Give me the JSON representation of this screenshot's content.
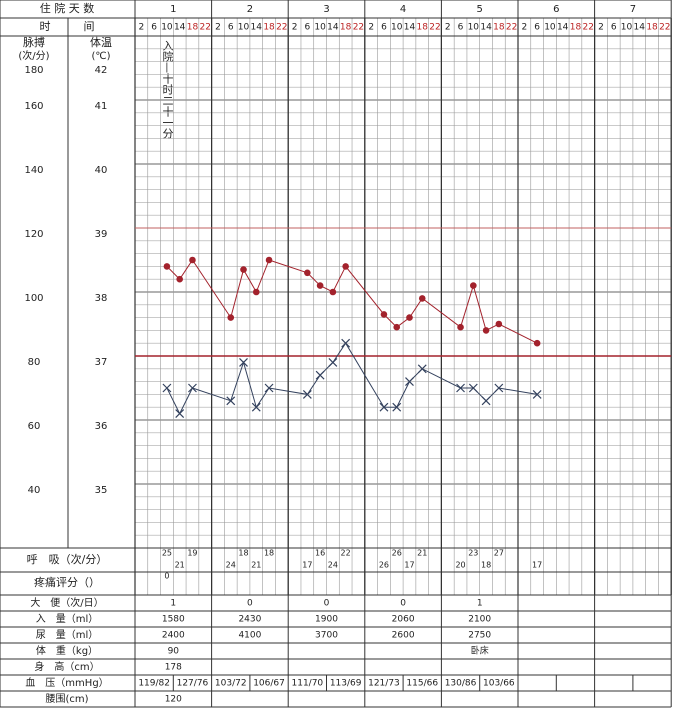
{
  "header": {
    "days_label": "住 院 天 数",
    "time_label": "时　　　间",
    "pulse_label": "脉搏",
    "temp_label": "体温",
    "pulse_unit": "(次/分)",
    "temp_unit": "(℃)"
  },
  "days": [
    1,
    2,
    3,
    4,
    5,
    6,
    7
  ],
  "hours": [
    2,
    6,
    10,
    14,
    18,
    22
  ],
  "chart_data": {
    "type": "line",
    "annotation": "入院—十时二十一分",
    "ylim": [
      20,
      180
    ],
    "yticks": [
      40,
      60,
      80,
      100,
      120,
      140,
      160,
      180
    ],
    "y2lim": [
      34,
      42
    ],
    "y2ticks": [
      35,
      36,
      37,
      38,
      39,
      40,
      41,
      42
    ],
    "series": [
      {
        "name": "脉搏",
        "color": "#a3222c",
        "values": [
          null,
          null,
          108,
          104,
          110,
          null,
          null,
          92,
          107,
          100,
          110,
          null,
          null,
          106,
          102,
          100,
          108,
          null,
          null,
          93,
          89,
          92,
          98,
          null,
          null,
          89,
          102,
          88,
          90,
          null,
          null,
          84,
          null,
          null,
          null,
          null,
          null,
          null,
          null,
          null,
          null,
          null
        ]
      },
      {
        "name": "体温",
        "color": "#34425e",
        "axis": "y2",
        "values": [
          null,
          null,
          36.5,
          36.1,
          36.5,
          null,
          null,
          36.3,
          36.9,
          36.2,
          36.5,
          null,
          null,
          36.4,
          36.7,
          36.9,
          37.2,
          null,
          null,
          36.2,
          36.2,
          36.6,
          36.8,
          null,
          null,
          36.5,
          36.5,
          36.3,
          36.5,
          null,
          null,
          36.4,
          null,
          null,
          null,
          null,
          null,
          null,
          null,
          null,
          null,
          null
        ]
      }
    ]
  },
  "respiration": {
    "label": "呼　吸（次/分）",
    "values": [
      null,
      null,
      25,
      21,
      19,
      null,
      null,
      24,
      18,
      21,
      18,
      null,
      null,
      17,
      16,
      24,
      22,
      null,
      null,
      26,
      26,
      17,
      21,
      null,
      null,
      20,
      23,
      18,
      27,
      null,
      null,
      17,
      null,
      null,
      null,
      null,
      null,
      null,
      null,
      null,
      null,
      null
    ]
  },
  "pain": {
    "label": "疼痛评分（）",
    "values": [
      null,
      null,
      0,
      null,
      null,
      null,
      null,
      null,
      null,
      null,
      null,
      null,
      null,
      null,
      null,
      null,
      null,
      null,
      null,
      null,
      null,
      null,
      null,
      null,
      null,
      null,
      null,
      null,
      null,
      null,
      null,
      null,
      null,
      null,
      null,
      null,
      null,
      null,
      null,
      null,
      null,
      null
    ]
  },
  "daily_rows": [
    {
      "label": "大　便（次/日）",
      "values": [
        1,
        0,
        0,
        0,
        1,
        null,
        null
      ]
    },
    {
      "label": "入　量（ml）",
      "values": [
        1580,
        2430,
        1900,
        2060,
        2100,
        null,
        null
      ]
    },
    {
      "label": "尿　量（ml）",
      "values": [
        2400,
        4100,
        3700,
        2600,
        2750,
        null,
        null
      ]
    },
    {
      "label": "体　重（kg）",
      "values": [
        90,
        null,
        null,
        null,
        "卧床",
        null,
        null
      ]
    },
    {
      "label": "身　高（cm）",
      "values": [
        178,
        null,
        null,
        null,
        null,
        null,
        null
      ]
    }
  ],
  "blood_pressure": {
    "label": "血　压（mmHg）",
    "values": [
      "119/82",
      "127/76",
      "103/72",
      "106/67",
      "111/70",
      "113/69",
      "121/73",
      "115/66",
      "130/86",
      "103/66",
      null,
      null,
      null,
      null
    ]
  },
  "waist": {
    "label": "腰围(cm)",
    "values": [
      120,
      null,
      null,
      null,
      null,
      null,
      null
    ]
  }
}
